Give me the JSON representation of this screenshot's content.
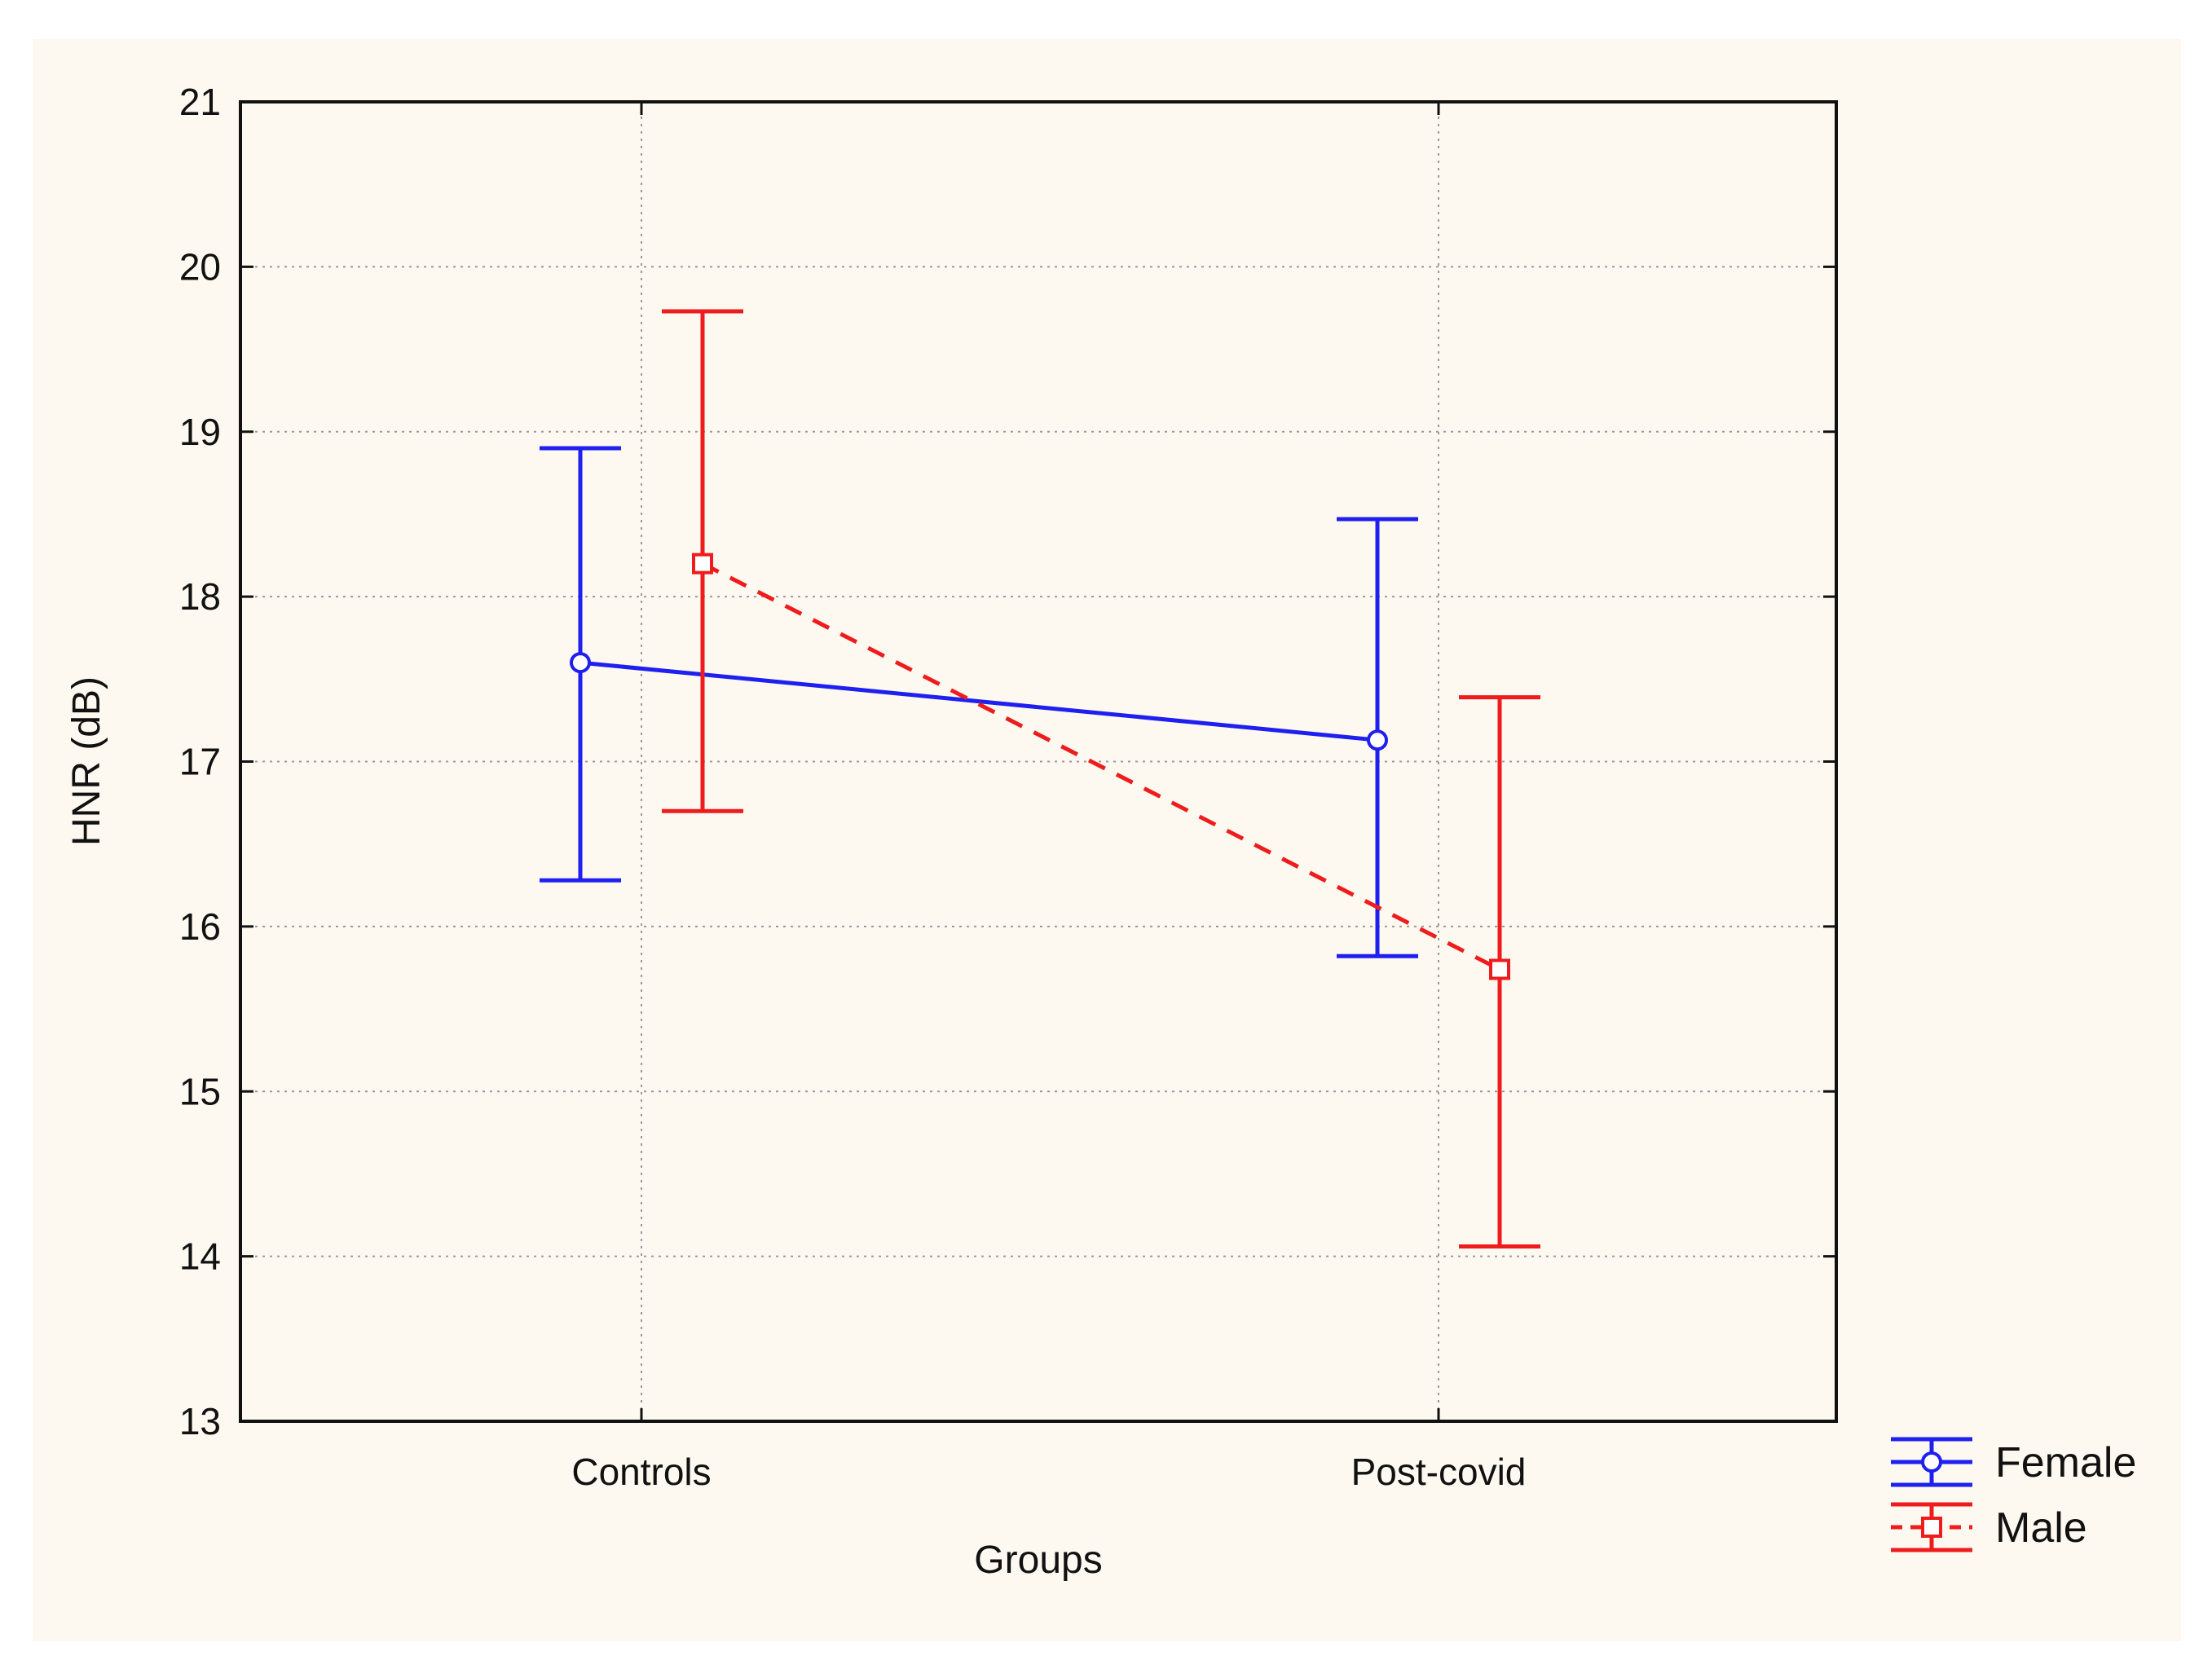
{
  "chart_data": {
    "type": "line",
    "title": "",
    "xlabel": "Groups",
    "ylabel": "HNR (dB)",
    "categories": [
      "Controls",
      "Post-covid"
    ],
    "ylim": [
      13,
      21
    ],
    "yticks": [
      13,
      14,
      15,
      16,
      17,
      18,
      19,
      20,
      21
    ],
    "grid": true,
    "legend_position": "bottom-right outside",
    "series": [
      {
        "name": "Female",
        "color": "#1f1fef",
        "line_style": "solid",
        "marker": "circle",
        "values": [
          17.6,
          17.13
        ],
        "error_low": [
          16.28,
          15.82
        ],
        "error_high": [
          18.9,
          18.47
        ]
      },
      {
        "name": "Male",
        "color": "#ee1c1c",
        "line_style": "dashed",
        "marker": "square",
        "values": [
          18.2,
          15.74
        ],
        "error_low": [
          16.7,
          14.06
        ],
        "error_high": [
          19.73,
          17.39
        ]
      }
    ]
  }
}
